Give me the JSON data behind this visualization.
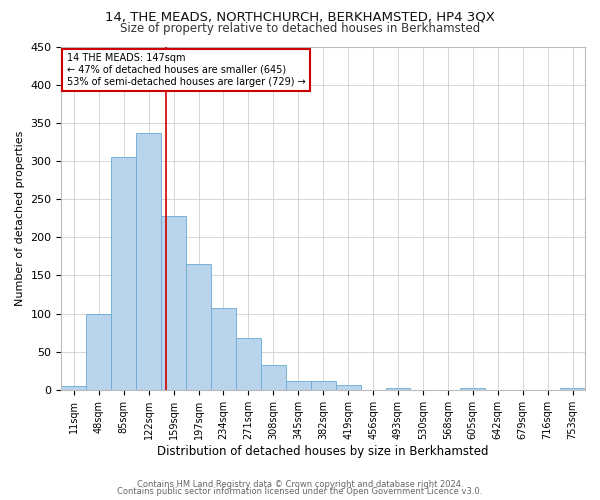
{
  "title1": "14, THE MEADS, NORTHCHURCH, BERKHAMSTED, HP4 3QX",
  "title2": "Size of property relative to detached houses in Berkhamsted",
  "xlabel": "Distribution of detached houses by size in Berkhamsted",
  "ylabel": "Number of detached properties",
  "categories": [
    "11sqm",
    "48sqm",
    "85sqm",
    "122sqm",
    "159sqm",
    "197sqm",
    "234sqm",
    "271sqm",
    "308sqm",
    "345sqm",
    "382sqm",
    "419sqm",
    "456sqm",
    "493sqm",
    "530sqm",
    "568sqm",
    "605sqm",
    "642sqm",
    "679sqm",
    "716sqm",
    "753sqm"
  ],
  "values": [
    5,
    100,
    305,
    337,
    228,
    165,
    107,
    68,
    32,
    12,
    12,
    6,
    0,
    3,
    0,
    0,
    3,
    0,
    0,
    0,
    3
  ],
  "bar_color": "#bad4ec",
  "bar_edge_color": "#6aaad4",
  "property_line_x": 3.68,
  "annotation_text_line1": "14 THE MEADS: 147sqm",
  "annotation_text_line2": "← 47% of detached houses are smaller (645)",
  "annotation_text_line3": "53% of semi-detached houses are larger (729) →",
  "annotation_box_color": "#ffffff",
  "annotation_box_edge": "#cc0000",
  "line_color": "#cc0000",
  "ylim": [
    0,
    450
  ],
  "yticks": [
    0,
    50,
    100,
    150,
    200,
    250,
    300,
    350,
    400,
    450
  ],
  "grid_color": "#d0d0d0",
  "background_color": "#ffffff",
  "footer1": "Contains HM Land Registry data © Crown copyright and database right 2024.",
  "footer2": "Contains public sector information licensed under the Open Government Licence v3.0."
}
